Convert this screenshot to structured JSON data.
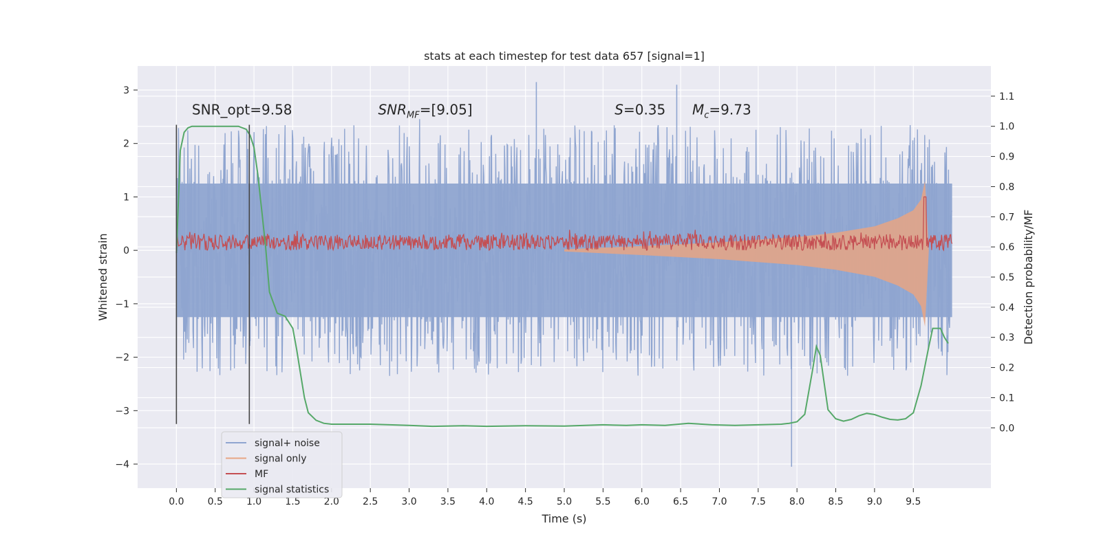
{
  "chart_data": {
    "type": "line",
    "title": "stats at each timestep for test data 657 [signal=1]",
    "xlabel": "Time (s)",
    "ylabel": "Whitened strain",
    "y2label": "Detection probability/MF",
    "xlim": [
      -0.5,
      10.5
    ],
    "ylim": [
      -4.45,
      3.45
    ],
    "y2lim": [
      -0.2,
      1.2
    ],
    "xticks": [
      0.0,
      0.5,
      1.0,
      1.5,
      2.0,
      2.5,
      3.0,
      3.5,
      4.0,
      4.5,
      5.0,
      5.5,
      6.0,
      6.5,
      7.0,
      7.5,
      8.0,
      8.5,
      9.0,
      9.5
    ],
    "xtick_labels": [
      "0.0",
      "0.5",
      "1.0",
      "1.5",
      "2.0",
      "2.5",
      "3.0",
      "3.5",
      "4.0",
      "4.5",
      "5.0",
      "5.5",
      "6.0",
      "6.5",
      "7.0",
      "7.5",
      "8.0",
      "8.5",
      "9.0",
      "9.5"
    ],
    "yticks": [
      -4,
      -3,
      -2,
      -1,
      0,
      1,
      2,
      3
    ],
    "ytick_labels": [
      "−4",
      "−3",
      "−2",
      "−1",
      "0",
      "1",
      "2",
      "3"
    ],
    "y2ticks": [
      0.0,
      0.1,
      0.2,
      0.3,
      0.4,
      0.5,
      0.6,
      0.7,
      0.8,
      0.9,
      1.0,
      1.1
    ],
    "y2tick_labels": [
      "0.0",
      "0.1",
      "0.2",
      "0.3",
      "0.4",
      "0.5",
      "0.6",
      "0.7",
      "0.8",
      "0.9",
      "1.0",
      "1.1"
    ],
    "grid": true,
    "legend_position": "lower-left",
    "legend": [
      {
        "label": "signal+ noise",
        "color": "#8fa5d0"
      },
      {
        "label": "signal only",
        "color": "#e8a584"
      },
      {
        "label": "MF",
        "color": "#c44e52"
      },
      {
        "label": "signal statistics",
        "color": "#55a868"
      }
    ],
    "annotations": [
      {
        "text": "SNR_opt=9.58",
        "x": 0.2,
        "y": 2.45
      },
      {
        "text": "SNR_MF=[9.05]",
        "x": 2.6,
        "y": 2.45
      },
      {
        "text": "S=0.35",
        "x": 5.65,
        "y": 2.45
      },
      {
        "text": "M_c=9.73",
        "x": 6.65,
        "y": 2.45
      }
    ],
    "vlines": [
      {
        "x": 0.0,
        "y_range": [
          -3.25,
          2.35
        ]
      },
      {
        "x": 0.94,
        "y_range": [
          -3.25,
          2.35
        ]
      }
    ],
    "series": [
      {
        "name": "signal+ noise",
        "color": "#8fa5d0",
        "axis": "left",
        "x_range": [
          0.0,
          10.0
        ],
        "envelope_upper": 1.25,
        "envelope_lower": -1.25,
        "max": 3.15,
        "min": -4.05
      },
      {
        "name": "signal only",
        "color": "#e8a584",
        "axis": "left",
        "x": [
          5.0,
          6.0,
          7.0,
          8.0,
          8.5,
          9.0,
          9.3,
          9.5,
          9.6,
          9.65,
          9.7
        ],
        "amplitude": [
          0.02,
          0.08,
          0.15,
          0.25,
          0.33,
          0.45,
          0.6,
          0.75,
          0.95,
          1.3,
          0.0
        ]
      },
      {
        "name": "MF",
        "color": "#c44e52",
        "axis": "left",
        "x_range": [
          0.0,
          10.0
        ],
        "baseline": 0.15,
        "spread": 0.15,
        "peak": {
          "x": 9.65,
          "y": 1.0
        }
      },
      {
        "name": "signal statistics",
        "color": "#55a868",
        "axis": "right",
        "x": [
          0.0,
          0.05,
          0.1,
          0.15,
          0.2,
          0.3,
          0.4,
          0.5,
          0.6,
          0.7,
          0.8,
          0.9,
          0.95,
          1.0,
          1.05,
          1.1,
          1.15,
          1.2,
          1.3,
          1.4,
          1.5,
          1.55,
          1.6,
          1.65,
          1.7,
          1.8,
          1.9,
          2.0,
          2.2,
          2.5,
          3.0,
          3.3,
          3.7,
          4.0,
          4.5,
          5.0,
          5.5,
          5.8,
          6.0,
          6.3,
          6.6,
          6.9,
          7.2,
          7.5,
          7.8,
          7.9,
          8.0,
          8.1,
          8.2,
          8.25,
          8.3,
          8.35,
          8.4,
          8.5,
          8.6,
          8.7,
          8.8,
          8.9,
          9.0,
          9.1,
          9.2,
          9.3,
          9.4,
          9.5,
          9.6,
          9.7,
          9.75,
          9.8,
          9.85,
          9.9,
          9.95
        ],
        "y": [
          0.58,
          0.92,
          0.98,
          0.995,
          1.0,
          1.0,
          1.0,
          1.0,
          1.0,
          1.0,
          1.0,
          0.99,
          0.97,
          0.93,
          0.84,
          0.72,
          0.6,
          0.45,
          0.38,
          0.37,
          0.33,
          0.26,
          0.18,
          0.1,
          0.05,
          0.025,
          0.015,
          0.012,
          0.012,
          0.012,
          0.008,
          0.005,
          0.007,
          0.005,
          0.007,
          0.006,
          0.01,
          0.008,
          0.01,
          0.008,
          0.015,
          0.01,
          0.008,
          0.01,
          0.012,
          0.015,
          0.02,
          0.045,
          0.19,
          0.27,
          0.24,
          0.15,
          0.06,
          0.03,
          0.022,
          0.028,
          0.04,
          0.048,
          0.044,
          0.035,
          0.028,
          0.026,
          0.03,
          0.05,
          0.14,
          0.27,
          0.33,
          0.33,
          0.33,
          0.3,
          0.28
        ]
      }
    ]
  }
}
